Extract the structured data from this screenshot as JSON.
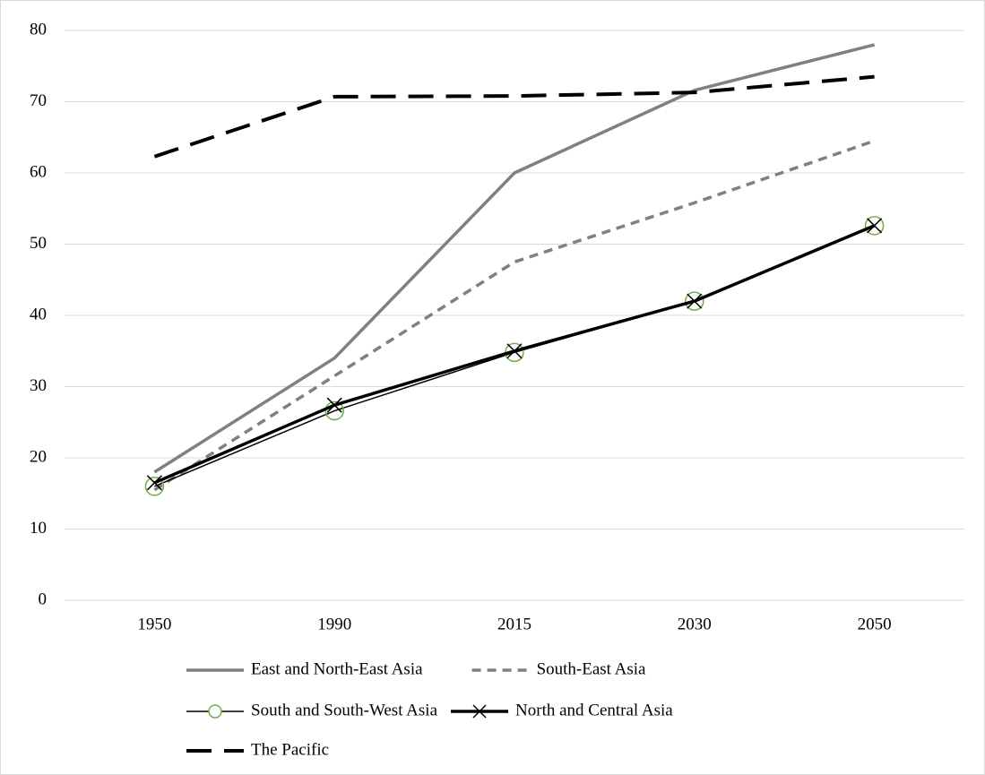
{
  "chart_data": {
    "type": "line",
    "categories": [
      "1950",
      "1990",
      "2015",
      "2030",
      "2050"
    ],
    "ylim": [
      0,
      80
    ],
    "yticks": [
      0,
      10,
      20,
      30,
      40,
      50,
      60,
      70,
      80
    ],
    "grid": true,
    "legend": "bottom",
    "series": [
      {
        "name": "East and North-East Asia",
        "color": "#808080",
        "width": 3.5,
        "dash": "solid",
        "marker": "none",
        "values": [
          18,
          34,
          60,
          71.6,
          78
        ]
      },
      {
        "name": "South-East Asia",
        "color": "#808080",
        "width": 3.5,
        "dash": "short",
        "marker": "none",
        "values": [
          15.5,
          31.5,
          47.5,
          55.8,
          64.5
        ]
      },
      {
        "name": "South and South-West Asia",
        "color": "#000000",
        "width": 1.5,
        "dash": "solid",
        "marker": "circle",
        "marker_color": "#70ad47",
        "values": [
          16,
          26.6,
          34.8,
          42,
          52.6
        ]
      },
      {
        "name": "North and Central Asia",
        "color": "#000000",
        "width": 3.5,
        "dash": "solid",
        "marker": "x",
        "marker_color": "#000000",
        "values": [
          16.5,
          27.4,
          35,
          42,
          52.6
        ]
      },
      {
        "name": "The Pacific",
        "color": "#000000",
        "width": 4,
        "dash": "long",
        "marker": "none",
        "values": [
          62.3,
          70.7,
          70.8,
          71.3,
          73.5
        ]
      }
    ]
  }
}
